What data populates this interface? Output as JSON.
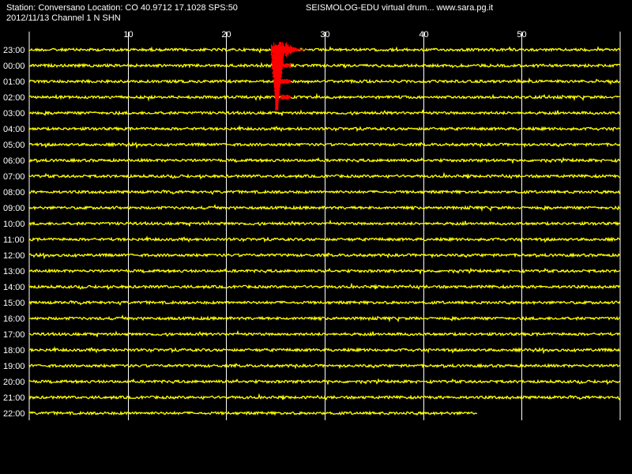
{
  "header": {
    "station_info": "Station: Conversano Location: CO 40.9712 17.1028 SPS:50",
    "date_channel": "2012/11/13  Channel 1 N SHN",
    "app_title": "SEISMOLOG-EDU virtual drum... www.sara.pg.it"
  },
  "colors": {
    "background": "#000000",
    "trace": "#ffff00",
    "event": "#ff0000",
    "grid": "#ffffff",
    "text": "#ffffff"
  },
  "chart_data": {
    "type": "line",
    "x_ticks": [
      "10",
      "20",
      "30",
      "40",
      "50"
    ],
    "xlim": [
      0,
      60
    ],
    "rows": [
      "23:00",
      "00:00",
      "01:00",
      "02:00",
      "03:00",
      "04:00",
      "05:00",
      "06:00",
      "07:00",
      "08:00",
      "09:00",
      "10:00",
      "11:00",
      "12:00",
      "13:00",
      "14:00",
      "15:00",
      "16:00",
      "17:00",
      "18:00",
      "19:00",
      "20:00",
      "21:00",
      "22:00"
    ],
    "last_row_end_minute": 45.5,
    "event": {
      "start_minute": 24.6,
      "rows_affected": [
        "23:00",
        "00:00",
        "01:00",
        "02:00"
      ]
    },
    "grid": true
  }
}
